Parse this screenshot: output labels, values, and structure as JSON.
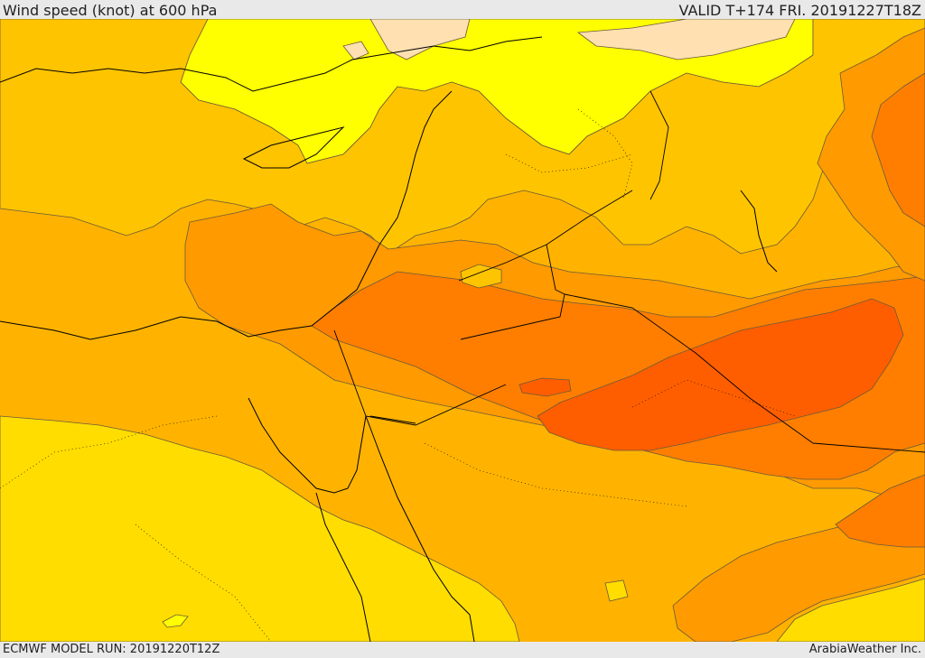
{
  "header": {
    "title": "Wind speed (knot) at 600 hPa",
    "valid": "VALID T+174 FRI. 20191227T18Z"
  },
  "footer": {
    "model_run": "ECMWF MODEL RUN: 20191220T12Z",
    "credit": "ArabiaWeather Inc."
  },
  "map": {
    "variable": "wind speed at 600 hPa",
    "units": "knot",
    "region": "Eastern Mediterranean, Middle East and Arabian Peninsula",
    "colors": {
      "very_light": "#ffe0b0",
      "light_yellow": "#ffff00",
      "yellow": "#ffdd00",
      "gold": "#ffc400",
      "orange_light": "#ffb300",
      "orange": "#ff9a00",
      "orange_dark": "#ff7e00",
      "red_orange": "#ff5e00",
      "contour_line": "#6a5a3a",
      "border_line": "#000000"
    }
  }
}
